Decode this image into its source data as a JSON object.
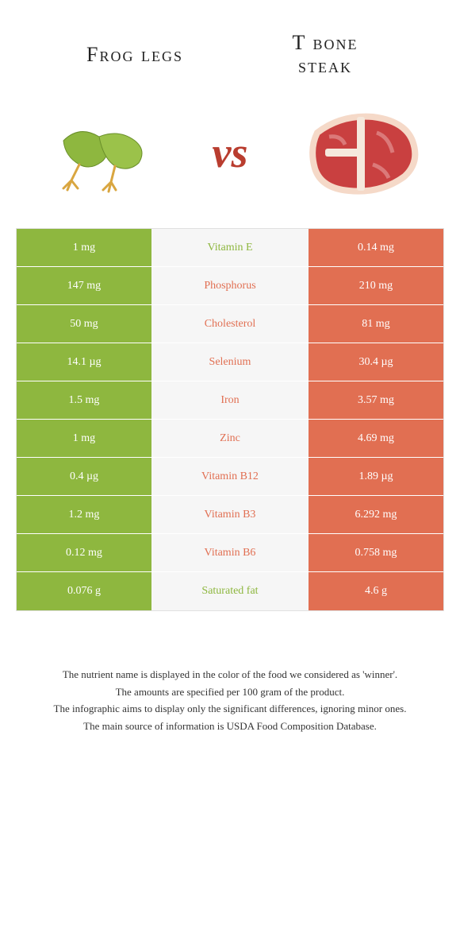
{
  "colors": {
    "left": "#8eb73f",
    "right": "#e16f52",
    "mid_bg": "#f6f6f6"
  },
  "header": {
    "left_title": "Frog legs",
    "right_title_line1": "T bone",
    "right_title_line2": "steak",
    "vs": "vs"
  },
  "rows": [
    {
      "left": "1 mg",
      "nutrient": "Vitamin E",
      "right": "0.14 mg",
      "winner": "left"
    },
    {
      "left": "147 mg",
      "nutrient": "Phosphorus",
      "right": "210 mg",
      "winner": "right"
    },
    {
      "left": "50 mg",
      "nutrient": "Cholesterol",
      "right": "81 mg",
      "winner": "right"
    },
    {
      "left": "14.1 µg",
      "nutrient": "Selenium",
      "right": "30.4 µg",
      "winner": "right"
    },
    {
      "left": "1.5 mg",
      "nutrient": "Iron",
      "right": "3.57 mg",
      "winner": "right"
    },
    {
      "left": "1 mg",
      "nutrient": "Zinc",
      "right": "4.69 mg",
      "winner": "right"
    },
    {
      "left": "0.4 µg",
      "nutrient": "Vitamin B12",
      "right": "1.89 µg",
      "winner": "right"
    },
    {
      "left": "1.2 mg",
      "nutrient": "Vitamin B3",
      "right": "6.292 mg",
      "winner": "right"
    },
    {
      "left": "0.12 mg",
      "nutrient": "Vitamin B6",
      "right": "0.758 mg",
      "winner": "right"
    },
    {
      "left": "0.076 g",
      "nutrient": "Saturated fat",
      "right": "4.6 g",
      "winner": "left"
    }
  ],
  "footer": {
    "line1": "The nutrient name is displayed in the color of the food we considered as 'winner'.",
    "line2": "The amounts are specified per 100 gram of the product.",
    "line3": "The infographic aims to display only the significant differences, ignoring minor ones.",
    "line4": "The main source of information is USDA Food Composition Database."
  }
}
